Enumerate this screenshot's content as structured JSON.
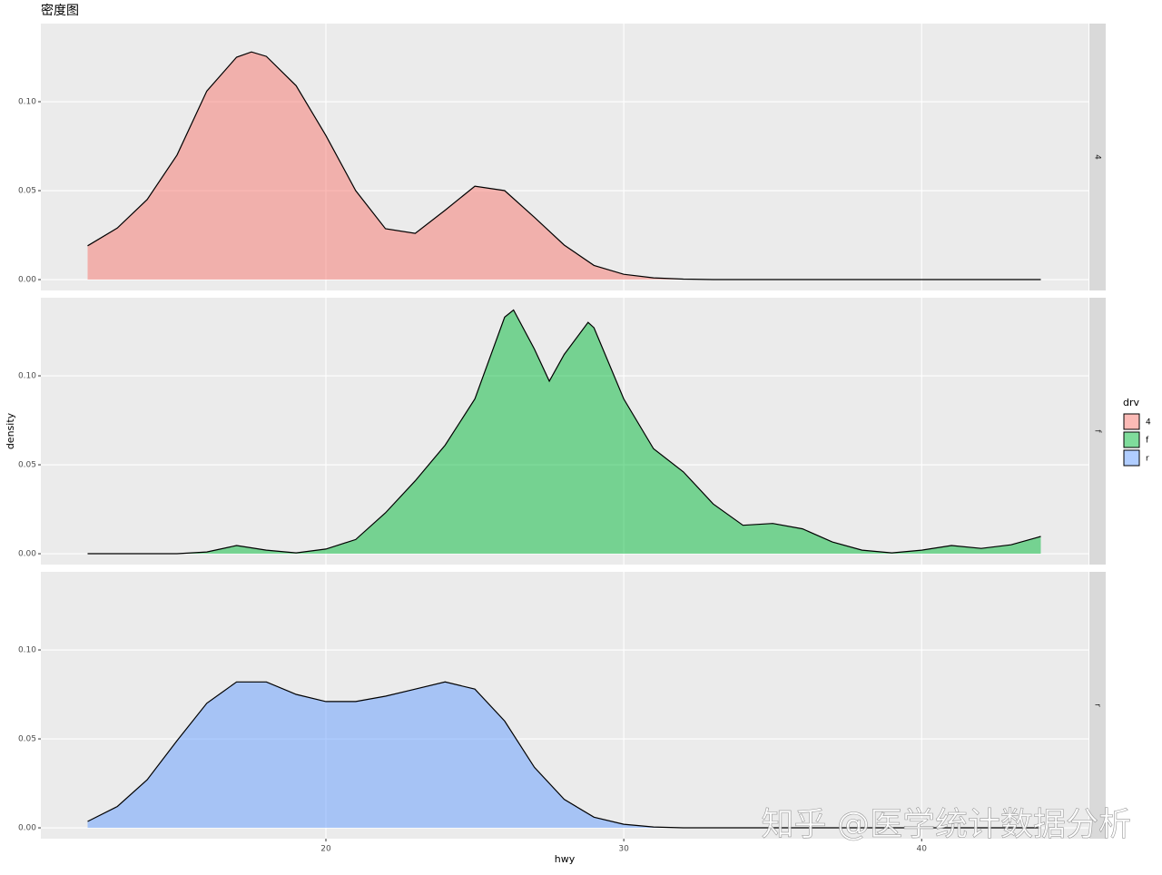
{
  "chart_data": {
    "type": "density",
    "facet": "rows",
    "title": "密度图",
    "x_label": "hwy",
    "y_label": "density",
    "legend_title": "drv",
    "watermark": "知乎 @医学统计数据分析",
    "xlim": [
      10.43,
      45.6
    ],
    "xticks": [
      20,
      30,
      40
    ],
    "ylim": [
      -0.0061,
      0.1439
    ],
    "yticks": [
      {
        "value": 0,
        "label": "0.00"
      },
      {
        "value": 0.05,
        "label": "0.05"
      },
      {
        "value": 0.1,
        "label": "0.10"
      }
    ],
    "grid": true,
    "fill_opacity": 0.5,
    "series": [
      {
        "name": "4",
        "color": "#F8766D",
        "x": [
          12,
          13,
          14,
          15,
          16,
          17,
          17.5,
          18,
          19,
          20,
          21,
          22,
          23,
          24,
          25,
          26,
          27,
          28,
          29,
          30,
          31,
          32,
          33,
          34,
          35,
          36,
          37,
          38,
          39,
          40,
          41,
          42,
          43,
          44
        ],
        "values": [
          0.019,
          0.029,
          0.045,
          0.07,
          0.106,
          0.125,
          0.128,
          0.1255,
          0.109,
          0.081,
          0.05,
          0.0286,
          0.026,
          0.039,
          0.0525,
          0.05,
          0.035,
          0.0194,
          0.008,
          0.003,
          0.001,
          0.0003,
          0,
          0,
          0,
          0,
          0,
          0,
          0,
          0,
          0,
          0,
          0,
          0
        ]
      },
      {
        "name": "f",
        "color": "#00BA38",
        "x": [
          12,
          13,
          14,
          15,
          16,
          17,
          18,
          19,
          20,
          21,
          22,
          23,
          24,
          25,
          26,
          26.3,
          27,
          27.5,
          28,
          28.8,
          29,
          30,
          31,
          32,
          33,
          34,
          35,
          36,
          37,
          38,
          39,
          40,
          41,
          42,
          43,
          44
        ],
        "values": [
          0,
          0,
          0,
          0,
          0.001,
          0.0046,
          0.002,
          0.0005,
          0.0026,
          0.008,
          0.023,
          0.041,
          0.061,
          0.087,
          0.133,
          0.137,
          0.115,
          0.097,
          0.112,
          0.13,
          0.127,
          0.087,
          0.059,
          0.046,
          0.028,
          0.016,
          0.017,
          0.014,
          0.0066,
          0.002,
          0.0005,
          0.002,
          0.0046,
          0.003,
          0.005,
          0.0097
        ]
      },
      {
        "name": "r",
        "color": "#619CFF",
        "x": [
          12,
          13,
          14,
          15,
          16,
          17,
          18,
          19,
          20,
          21,
          22,
          23,
          24,
          25,
          26,
          27,
          28,
          29,
          30,
          31,
          32,
          33,
          34,
          35,
          36,
          37,
          38,
          39,
          40,
          41,
          42,
          43,
          44
        ],
        "values": [
          0.0036,
          0.012,
          0.027,
          0.049,
          0.07,
          0.082,
          0.082,
          0.075,
          0.071,
          0.071,
          0.074,
          0.078,
          0.082,
          0.078,
          0.06,
          0.034,
          0.016,
          0.006,
          0.002,
          0.0005,
          0,
          0,
          0,
          0,
          0,
          0,
          0,
          0,
          0,
          0,
          0,
          0,
          0
        ]
      }
    ]
  }
}
